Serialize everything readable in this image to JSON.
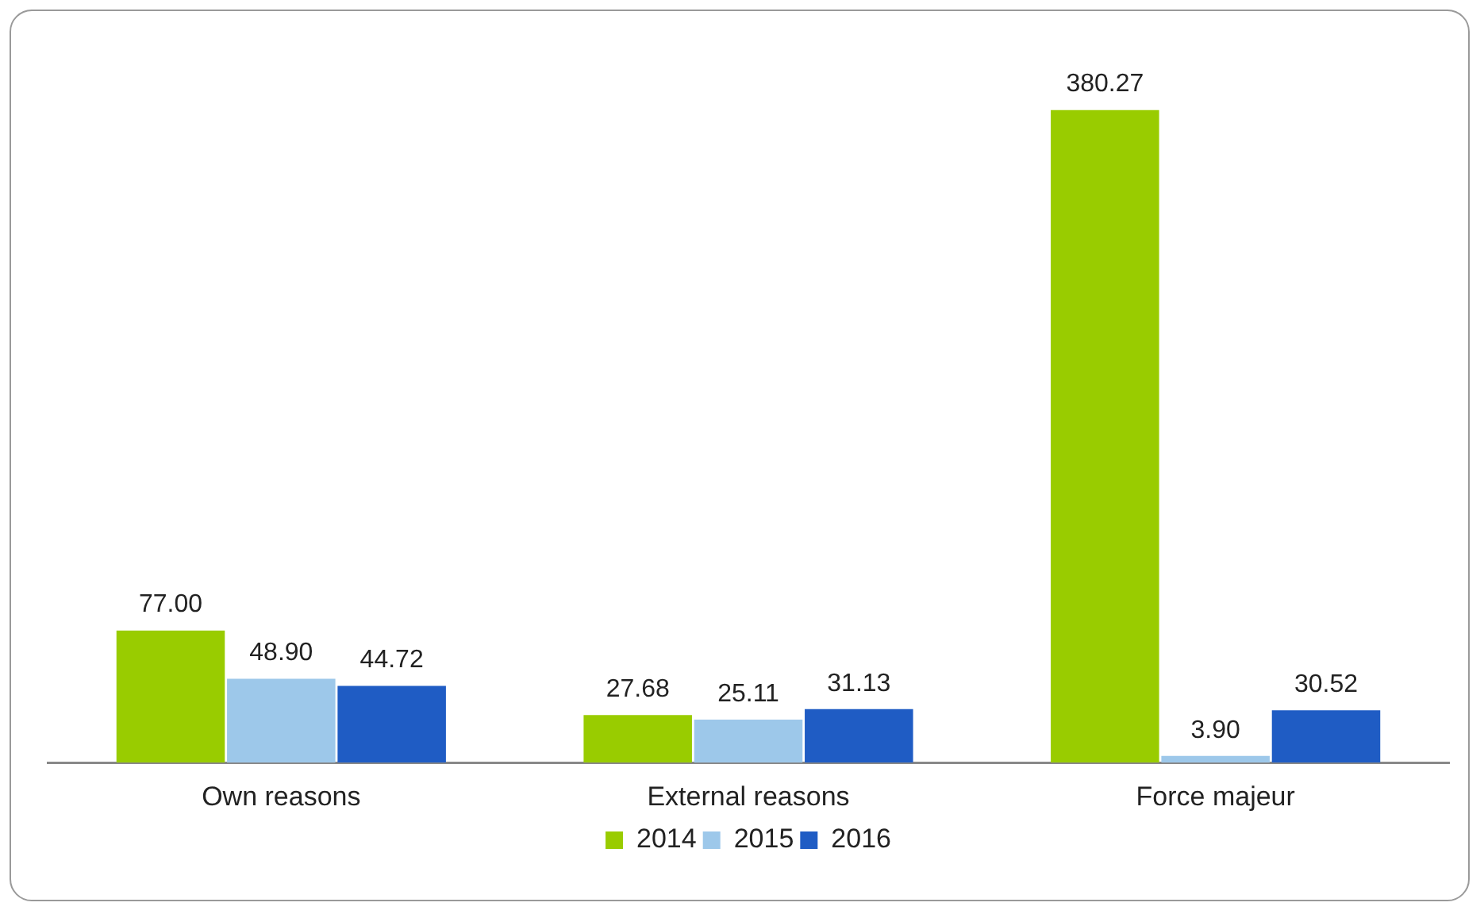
{
  "chart_data": {
    "type": "bar",
    "categories": [
      "Own reasons",
      "External reasons",
      "Force majeur"
    ],
    "series": [
      {
        "name": "2014",
        "color": "#99cc00",
        "values": [
          77.0,
          27.68,
          380.27
        ],
        "value_labels": [
          "77.00",
          "27.68",
          "380.27"
        ]
      },
      {
        "name": "2015",
        "color": "#9dc8ea",
        "values": [
          48.9,
          25.11,
          3.9
        ],
        "value_labels": [
          "48.90",
          "25.11",
          "3.90"
        ]
      },
      {
        "name": "2016",
        "color": "#1f5cc4",
        "values": [
          44.72,
          31.13,
          30.52
        ],
        "value_labels": [
          "44.72",
          "31.13",
          "30.52"
        ]
      }
    ],
    "legend": "bottom",
    "grid": false
  }
}
